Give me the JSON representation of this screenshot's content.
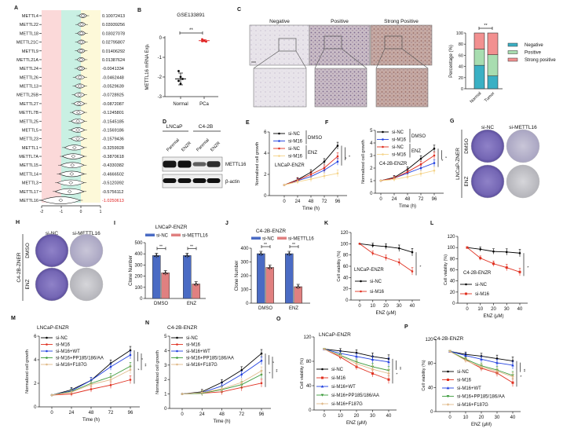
{
  "panel_labels": [
    "A",
    "B",
    "C",
    "D",
    "E",
    "F",
    "G",
    "H",
    "I",
    "J",
    "K",
    "L",
    "M",
    "N",
    "O",
    "P"
  ],
  "images": {
    "C": {
      "labels": [
        "Negative",
        "Positive",
        "Strong Positive"
      ]
    },
    "D": {
      "groups": [
        "LNCaP",
        "C4-2B"
      ],
      "lanes": [
        "Parental",
        "ENZR",
        "Parental",
        "ENZR"
      ],
      "bands": [
        "METTL16",
        "β-actin"
      ],
      "mettl16_intensity": [
        0.95,
        1.0,
        0.45,
        0.8
      ]
    },
    "G": {
      "columns": [
        "si-NC",
        "si-METTL16"
      ],
      "rows": [
        "DMSO",
        "ENZ"
      ],
      "side": "LNCaP-ZNER"
    },
    "H": {
      "columns": [
        "si-NC",
        "si-METTL16"
      ],
      "rows": [
        "DMSO",
        "ENZ"
      ],
      "side": "C4-2B-ZNER"
    }
  },
  "colors": {
    "pink_band": "#fbd9d9",
    "green_band": "#c9f0e3",
    "yellow_band": "#fdf9d9",
    "highlight": "#e02020"
  },
  "chart_data": [
    {
      "panel": "A",
      "type": "violin",
      "xticks": [
        -2,
        -1,
        0,
        1
      ],
      "xlim": [
        -2,
        1
      ],
      "genes": [
        "METTL4",
        "METTL22",
        "METTL18",
        "METTL21C",
        "METTL9",
        "METTL21A",
        "METTL24",
        "METTL26",
        "METTL13",
        "METTL25B",
        "METTL27",
        "METTL7B",
        "METTL25",
        "METTL5",
        "METTL23",
        "METTL1",
        "METTL7A",
        "METTL15",
        "METTL14",
        "METTL3",
        "METTL17",
        "METTL16"
      ],
      "values": [
        "0.10072413",
        "0.03939256",
        "0.03027078",
        "0.02795807",
        "0.01406292",
        "0.01387624",
        "-0.0041334",
        "-0.0462448",
        "-0.0529639",
        "-0.0728925",
        "-0.0872087",
        "-0.1245801",
        "-0.1545185",
        "-0.1569186",
        "-0.1579436",
        "-0.3259928",
        "-0.3870618",
        "-0.4330382",
        "-0.4666502",
        "-0.5120392",
        "-0.5756112",
        "-1.0250613"
      ]
    },
    {
      "panel": "B",
      "type": "scatter",
      "title": "GSE133891",
      "ylabel": "METTL16 mRNA Exp.",
      "categories": [
        "Normal",
        "PCa"
      ],
      "yticks": [
        0,
        -1,
        -2,
        -3
      ],
      "ylim": [
        -3,
        0
      ],
      "points": [
        [
          -1.7,
          -2.0,
          -2.1,
          -2.2,
          -2.35
        ],
        [
          -0.08,
          -0.15,
          -0.2,
          -0.18
        ]
      ],
      "means": [
        -2.1,
        -0.15
      ],
      "sd": [
        0.3,
        0.05
      ],
      "significance": "**",
      "colors": [
        "#000000",
        "#e02020"
      ]
    },
    {
      "panel": "C",
      "type": "bar",
      "stacked": true,
      "ylabel": "Percentage (%)",
      "categories": [
        "Normal",
        "Tumor"
      ],
      "yticks": [
        0,
        20,
        40,
        60,
        80,
        100
      ],
      "ylim": [
        0,
        100
      ],
      "series": [
        {
          "name": "Negative",
          "values": [
            42,
            23
          ],
          "color": "#3ab0c4"
        },
        {
          "name": "Positive",
          "values": [
            29,
            38
          ],
          "color": "#a8ddb0"
        },
        {
          "name": "Strong positive",
          "values": [
            29,
            39
          ],
          "color": "#f29090"
        }
      ],
      "significance": "**",
      "legend": "right"
    },
    {
      "panel": "E",
      "type": "line",
      "ylabel": "Normalized cell growth",
      "xlabel": "Time (h)",
      "annotation": "LNCaP-ENZR",
      "x": [
        0,
        24,
        48,
        72,
        96
      ],
      "yticks": [
        0,
        2,
        4,
        6
      ],
      "ylim": [
        0,
        6
      ],
      "series": [
        {
          "name": "si-NC",
          "values": [
            1,
            1.5,
            2.2,
            3.2,
            4.7
          ],
          "color": "#000000"
        },
        {
          "name": "si-M16",
          "values": [
            1,
            1.4,
            1.8,
            2.4,
            3.2
          ],
          "color": "#2040e0"
        },
        {
          "name": "si-NC",
          "values": [
            1,
            1.45,
            2.0,
            2.6,
            3.7
          ],
          "color": "#e03020"
        },
        {
          "name": "si-M16",
          "values": [
            1,
            1.3,
            1.55,
            1.85,
            2.1
          ],
          "color": "#f5d48a"
        }
      ],
      "groups": [
        "DMSO",
        "ENZ"
      ],
      "significance": [
        "*",
        "*"
      ]
    },
    {
      "panel": "F",
      "type": "line",
      "ylabel": "Normalized cell growth",
      "xlabel": "Time (h)",
      "annotation": "C4-2B-ENZR",
      "x": [
        0,
        24,
        48,
        72,
        96
      ],
      "yticks": [
        0,
        1,
        2,
        3,
        4,
        5
      ],
      "ylim": [
        0,
        5
      ],
      "series": [
        {
          "name": "si-NC",
          "values": [
            1,
            1.25,
            1.9,
            2.75,
            3.55
          ],
          "color": "#000000"
        },
        {
          "name": "si-M16",
          "values": [
            1,
            1.2,
            1.6,
            2.0,
            2.4
          ],
          "color": "#2040e0"
        },
        {
          "name": "si-NC",
          "values": [
            1,
            1.2,
            1.7,
            2.3,
            3.0
          ],
          "color": "#e03020"
        },
        {
          "name": "si-M16",
          "values": [
            1,
            1.1,
            1.3,
            1.55,
            1.8
          ],
          "color": "#f5d48a"
        }
      ],
      "groups": [
        "DMSO",
        "ENZ"
      ],
      "significance": [
        "*",
        "*"
      ]
    },
    {
      "panel": "I",
      "type": "bar",
      "title": "LNCaP-ENZR",
      "ylabel": "Clone Number",
      "categories": [
        "DMSO",
        "ENZ"
      ],
      "yticks": [
        0,
        100,
        200,
        300,
        400,
        500
      ],
      "ylim": [
        0,
        500
      ],
      "series": [
        {
          "name": "si-NC",
          "values": [
            385,
            385
          ],
          "color": "#4a6bc4"
        },
        {
          "name": "si-METTL16",
          "values": [
            230,
            130
          ],
          "color": "#e08080"
        }
      ],
      "significance": [
        "**",
        "**"
      ],
      "legend": "top"
    },
    {
      "panel": "J",
      "type": "bar",
      "title": "C4-2B-ENZR",
      "ylabel": "Clone Number",
      "categories": [
        "DMSO",
        "ENZ"
      ],
      "yticks": [
        0,
        100,
        200,
        300,
        400
      ],
      "ylim": [
        0,
        400
      ],
      "series": [
        {
          "name": "si-NC",
          "values": [
            360,
            360
          ],
          "color": "#4a6bc4"
        },
        {
          "name": "si-METTL16",
          "values": [
            260,
            120
          ],
          "color": "#e08080"
        }
      ],
      "significance": [
        "**",
        "**"
      ],
      "legend": "top"
    },
    {
      "panel": "K",
      "type": "line",
      "ylabel": "Cell viability (%)",
      "xlabel": "ENZ (μM)",
      "annotation": "LNCaP-ENZR",
      "x": [
        0,
        10,
        20,
        30,
        40
      ],
      "yticks": [
        0,
        20,
        40,
        60,
        80,
        100,
        120
      ],
      "ylim": [
        0,
        120
      ],
      "series": [
        {
          "name": "si-NC",
          "values": [
            100,
            97,
            95,
            92,
            85
          ],
          "color": "#000000"
        },
        {
          "name": "si-M16",
          "values": [
            100,
            83,
            75,
            67,
            51
          ],
          "color": "#e03020"
        }
      ],
      "significance": [
        "*"
      ]
    },
    {
      "panel": "L",
      "type": "line",
      "ylabel": "Cell viability (%)",
      "xlabel": "ENZ (μM)",
      "annotation": "C4-2B-ENZR",
      "x": [
        0,
        10,
        20,
        30,
        40
      ],
      "yticks": [
        0,
        20,
        40,
        60,
        80,
        100,
        120
      ],
      "ylim": [
        0,
        120
      ],
      "series": [
        {
          "name": "si-NC",
          "values": [
            100,
            97,
            93,
            92,
            90
          ],
          "color": "#000000"
        },
        {
          "name": "si-M16",
          "values": [
            100,
            81,
            71,
            64,
            56
          ],
          "color": "#e03020"
        }
      ],
      "significance": [
        "*"
      ]
    },
    {
      "panel": "M",
      "type": "line",
      "title": "LNCaP-ENZR",
      "ylabel": "Normalized cell growth",
      "xlabel": "Time (h)",
      "x": [
        0,
        24,
        48,
        72,
        96
      ],
      "yticks": [
        0,
        2,
        4,
        6
      ],
      "ylim": [
        0,
        6
      ],
      "series": [
        {
          "name": "si-NC",
          "values": [
            1,
            1.45,
            2.25,
            3.7,
            4.8
          ],
          "color": "#000000"
        },
        {
          "name": "si-M16",
          "values": [
            1,
            1.1,
            1.5,
            1.85,
            2.3
          ],
          "color": "#e03020"
        },
        {
          "name": "si-M16+WT",
          "values": [
            1,
            1.35,
            2.25,
            3.4,
            4.4
          ],
          "color": "#2040e0"
        },
        {
          "name": "si-M16+PP185/186/AA",
          "values": [
            1,
            1.3,
            2.0,
            2.55,
            3.45
          ],
          "color": "#3a9a3a"
        },
        {
          "name": "si-M16+F187G",
          "values": [
            1,
            1.25,
            1.9,
            2.3,
            3.15
          ],
          "color": "#e0b98a"
        }
      ],
      "significance": [
        "*",
        "*",
        "**"
      ]
    },
    {
      "panel": "N",
      "type": "line",
      "title": "C4-2B-ENZR",
      "ylabel": "Normalized cell growth",
      "xlabel": "Time (h)",
      "x": [
        0,
        24,
        48,
        72,
        96
      ],
      "yticks": [
        0,
        1,
        2,
        3,
        4,
        5
      ],
      "ylim": [
        0,
        5
      ],
      "series": [
        {
          "name": "si-NC",
          "values": [
            1,
            1.15,
            1.8,
            2.65,
            3.8
          ],
          "color": "#000000"
        },
        {
          "name": "si-M16",
          "values": [
            1,
            1.05,
            1.15,
            1.45,
            1.75
          ],
          "color": "#e03020"
        },
        {
          "name": "si-M16+WT",
          "values": [
            1,
            1.1,
            1.55,
            2.35,
            3.3
          ],
          "color": "#2040e0"
        },
        {
          "name": "si-M16+PP185/186/AA",
          "values": [
            1,
            1.05,
            1.3,
            1.65,
            2.35
          ],
          "color": "#3a9a3a"
        },
        {
          "name": "si-M16+F187G",
          "values": [
            1,
            1.1,
            1.35,
            1.8,
            2.6
          ],
          "color": "#e0b98a"
        }
      ],
      "significance": [
        "*",
        "*",
        "**"
      ]
    },
    {
      "panel": "O",
      "type": "line",
      "title": "LNCaP-ENZR",
      "ylabel": "Cell viability (%)",
      "xlabel": "ENZ (μM)",
      "x": [
        0,
        10,
        20,
        30,
        40
      ],
      "yticks": [
        0,
        40,
        80,
        120
      ],
      "ylim": [
        0,
        120
      ],
      "series": [
        {
          "name": "si-NC",
          "values": [
            100,
            97,
            94,
            88,
            84
          ],
          "color": "#000000"
        },
        {
          "name": "si-M16",
          "values": [
            100,
            87,
            71,
            60,
            50
          ],
          "color": "#e03020"
        },
        {
          "name": "si-M16+WT",
          "values": [
            100,
            93,
            88,
            83,
            79
          ],
          "color": "#2040e0"
        },
        {
          "name": "si-M16+PP185/186/AA",
          "values": [
            100,
            90,
            79,
            71,
            65
          ],
          "color": "#3a9a3a"
        },
        {
          "name": "si-M16+F187G",
          "values": [
            100,
            89,
            76,
            67,
            60
          ],
          "color": "#e0b98a"
        }
      ],
      "significance": [
        "*",
        "**"
      ]
    },
    {
      "panel": "P",
      "type": "line",
      "title": "C4-2B-ENZR",
      "ylabel": "Cell viability (%)",
      "xlabel": "ENZ (μM)",
      "x": [
        0,
        10,
        20,
        30,
        40
      ],
      "yticks": [
        0,
        40,
        80,
        120
      ],
      "ylim": [
        0,
        120
      ],
      "series": [
        {
          "name": "si-NC",
          "values": [
            100,
            95,
            92,
            88,
            84
          ],
          "color": "#000000"
        },
        {
          "name": "si-M16",
          "values": [
            100,
            86,
            72,
            64,
            48
          ],
          "color": "#e03020"
        },
        {
          "name": "si-M16+WT",
          "values": [
            100,
            93,
            87,
            81,
            77
          ],
          "color": "#2040e0"
        },
        {
          "name": "si-M16+PP185/186/AA",
          "values": [
            100,
            87,
            76,
            69,
            60
          ],
          "color": "#3a9a3a"
        },
        {
          "name": "si-M16+F187G",
          "values": [
            100,
            85,
            74,
            67,
            58
          ],
          "color": "#e0b98a"
        }
      ],
      "significance": [
        "*",
        "**"
      ]
    }
  ]
}
